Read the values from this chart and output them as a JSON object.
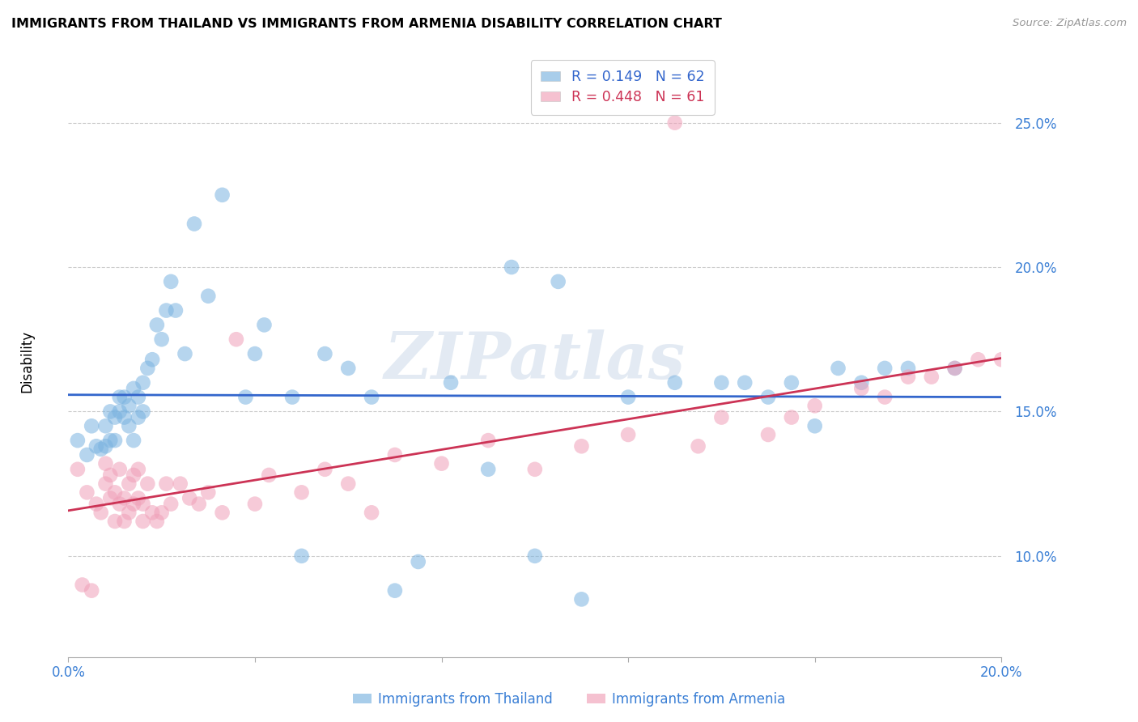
{
  "title": "IMMIGRANTS FROM THAILAND VS IMMIGRANTS FROM ARMENIA DISABILITY CORRELATION CHART",
  "source": "Source: ZipAtlas.com",
  "ylabel": "Disability",
  "xlim": [
    0.0,
    0.2
  ],
  "ylim": [
    0.065,
    0.27
  ],
  "yticks": [
    0.1,
    0.15,
    0.2,
    0.25
  ],
  "ytick_labels": [
    "10.0%",
    "15.0%",
    "20.0%",
    "25.0%"
  ],
  "xtick_pos": [
    0.0,
    0.04,
    0.08,
    0.12,
    0.16,
    0.2
  ],
  "xtick_labels": [
    "0.0%",
    "",
    "",
    "",
    "",
    "20.0%"
  ],
  "thailand_color": "#7ab3e0",
  "armenia_color": "#f0a0b8",
  "thailand_line_color": "#3366cc",
  "armenia_line_color": "#cc3355",
  "R_thailand": "0.149",
  "N_thailand": "62",
  "R_armenia": "0.448",
  "N_armenia": "61",
  "watermark": "ZIPatlas",
  "thailand_x": [
    0.002,
    0.004,
    0.005,
    0.006,
    0.007,
    0.008,
    0.008,
    0.009,
    0.009,
    0.01,
    0.01,
    0.011,
    0.011,
    0.012,
    0.012,
    0.013,
    0.013,
    0.014,
    0.014,
    0.015,
    0.015,
    0.016,
    0.016,
    0.017,
    0.018,
    0.019,
    0.02,
    0.021,
    0.022,
    0.023,
    0.025,
    0.027,
    0.03,
    0.033,
    0.038,
    0.04,
    0.042,
    0.048,
    0.05,
    0.055,
    0.06,
    0.065,
    0.07,
    0.075,
    0.082,
    0.09,
    0.095,
    0.1,
    0.105,
    0.11,
    0.12,
    0.13,
    0.14,
    0.145,
    0.15,
    0.155,
    0.16,
    0.165,
    0.17,
    0.175,
    0.18,
    0.19
  ],
  "thailand_y": [
    0.14,
    0.135,
    0.145,
    0.138,
    0.137,
    0.138,
    0.145,
    0.14,
    0.15,
    0.14,
    0.148,
    0.15,
    0.155,
    0.148,
    0.155,
    0.145,
    0.152,
    0.14,
    0.158,
    0.148,
    0.155,
    0.15,
    0.16,
    0.165,
    0.168,
    0.18,
    0.175,
    0.185,
    0.195,
    0.185,
    0.17,
    0.215,
    0.19,
    0.225,
    0.155,
    0.17,
    0.18,
    0.155,
    0.1,
    0.17,
    0.165,
    0.155,
    0.088,
    0.098,
    0.16,
    0.13,
    0.2,
    0.1,
    0.195,
    0.085,
    0.155,
    0.16,
    0.16,
    0.16,
    0.155,
    0.16,
    0.145,
    0.165,
    0.16,
    0.165,
    0.165,
    0.165
  ],
  "armenia_x": [
    0.002,
    0.003,
    0.004,
    0.005,
    0.006,
    0.007,
    0.008,
    0.008,
    0.009,
    0.009,
    0.01,
    0.01,
    0.011,
    0.011,
    0.012,
    0.012,
    0.013,
    0.013,
    0.014,
    0.014,
    0.015,
    0.015,
    0.016,
    0.016,
    0.017,
    0.018,
    0.019,
    0.02,
    0.021,
    0.022,
    0.024,
    0.026,
    0.028,
    0.03,
    0.033,
    0.036,
    0.04,
    0.043,
    0.05,
    0.055,
    0.06,
    0.065,
    0.07,
    0.08,
    0.09,
    0.1,
    0.11,
    0.12,
    0.13,
    0.135,
    0.14,
    0.15,
    0.155,
    0.16,
    0.17,
    0.175,
    0.18,
    0.185,
    0.19,
    0.195,
    0.2
  ],
  "armenia_y": [
    0.13,
    0.09,
    0.122,
    0.088,
    0.118,
    0.115,
    0.125,
    0.132,
    0.12,
    0.128,
    0.112,
    0.122,
    0.118,
    0.13,
    0.112,
    0.12,
    0.115,
    0.125,
    0.118,
    0.128,
    0.12,
    0.13,
    0.112,
    0.118,
    0.125,
    0.115,
    0.112,
    0.115,
    0.125,
    0.118,
    0.125,
    0.12,
    0.118,
    0.122,
    0.115,
    0.175,
    0.118,
    0.128,
    0.122,
    0.13,
    0.125,
    0.115,
    0.135,
    0.132,
    0.14,
    0.13,
    0.138,
    0.142,
    0.25,
    0.138,
    0.148,
    0.142,
    0.148,
    0.152,
    0.158,
    0.155,
    0.162,
    0.162,
    0.165,
    0.168,
    0.168
  ]
}
